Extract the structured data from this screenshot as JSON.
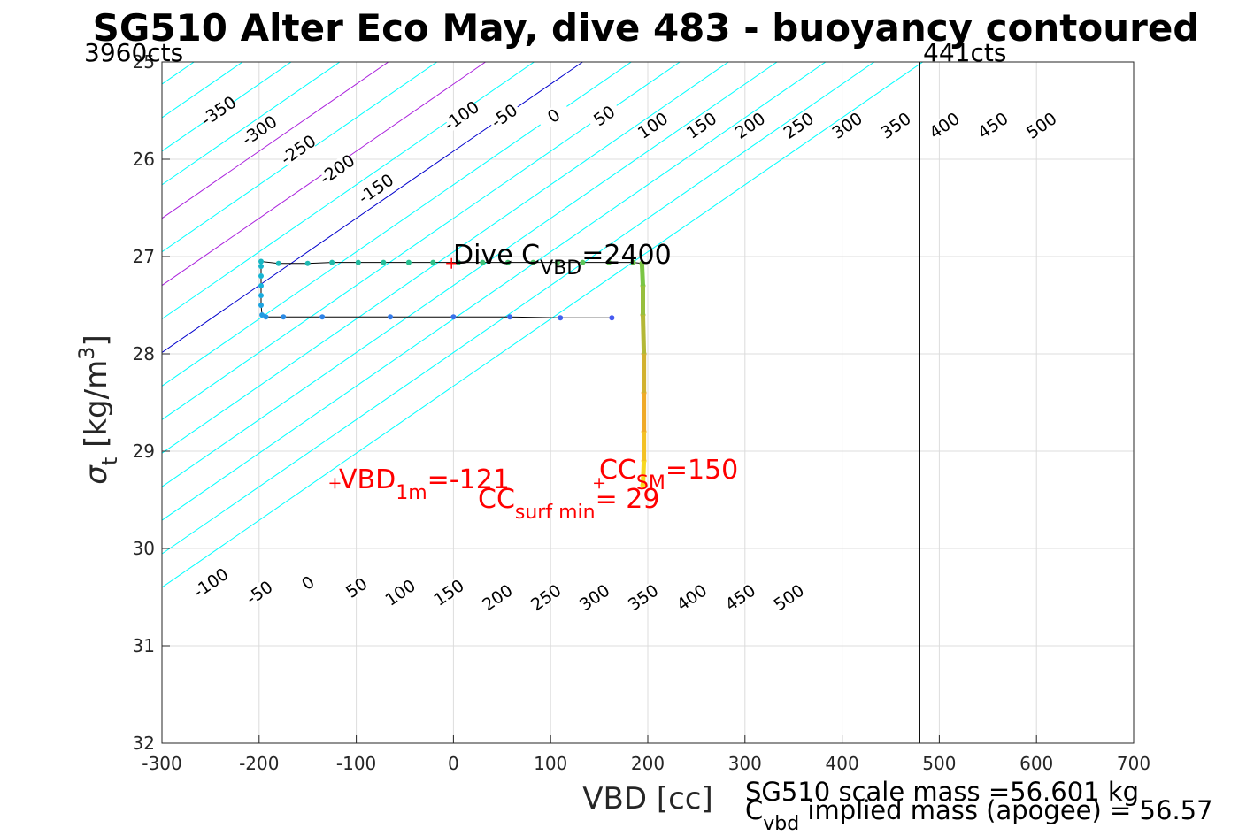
{
  "title": "SG510 Alter Eco May, dive 483 - buoyancy contoured",
  "corner_left": "3960cts",
  "corner_right": "441cts",
  "xlabel": "VBD [cc]",
  "ylabel_sigma": "σ",
  "ylabel_sub": "t",
  "ylabel_units": " [kg/m",
  "ylabel_sup": "3",
  "ylabel_close": "]",
  "annotations": {
    "dive_c_main": "Dive C",
    "dive_c_sub": "VBD",
    "dive_c_value": "=2400",
    "vbd1m_main": "VBD",
    "vbd1m_sub": "1m",
    "vbd1m_value": "=-121",
    "ccsm_main": "CC",
    "ccsm_sub": "SM",
    "ccsm_value": "=150",
    "ccsurf_main": "CC",
    "ccsurf_sub": "surf min",
    "ccsurf_value": "= 29",
    "scale_mass": "SG510 scale mass =56.601 kg",
    "implied_main": "C",
    "implied_sub": "vbd",
    "implied_value": " implied mass (apogee) = 56.57"
  },
  "chart_data": {
    "type": "scatter",
    "title": "SG510 Alter Eco May, dive 483 - buoyancy contoured",
    "xlabel": "VBD [cc]",
    "ylabel": "σt [kg/m3]",
    "xlim": [
      -300,
      700
    ],
    "ylim": [
      25,
      32
    ],
    "y_reversed": true,
    "grid": true,
    "xticks": [
      -300,
      -200,
      -100,
      0,
      100,
      200,
      300,
      400,
      500,
      600,
      700
    ],
    "yticks": [
      25,
      26,
      27,
      28,
      29,
      30,
      31,
      32
    ],
    "contour_slope_cc_per_sigma": 145,
    "contours": [
      {
        "level": -350,
        "color": "#00ffff"
      },
      {
        "level": -300,
        "color": "#00ffff"
      },
      {
        "level": -250,
        "color": "#00ffff"
      },
      {
        "level": -200,
        "color": "#00ffff"
      },
      {
        "level": -150,
        "color": "#00ffff"
      },
      {
        "level": -100,
        "color": "#00ffff"
      },
      {
        "level": -50,
        "color": "#00ffff"
      },
      {
        "level": 0,
        "color": "#0000cc"
      },
      {
        "level": 50,
        "color": "#00ffff"
      },
      {
        "level": 100,
        "color": "#aa22dd"
      },
      {
        "level": 150,
        "color": "#00ffff"
      },
      {
        "level": 200,
        "color": "#aa22dd"
      },
      {
        "level": 250,
        "color": "#00ffff"
      },
      {
        "level": 300,
        "color": "#00ffff"
      },
      {
        "level": 350,
        "color": "#00ffff"
      },
      {
        "level": 400,
        "color": "#00ffff"
      },
      {
        "level": 450,
        "color": "#00ffff"
      },
      {
        "level": 500,
        "color": "#00ffff"
      }
    ],
    "contour_zero_vbd_at_sigma_25": 133,
    "contour_labels_top": [
      {
        "text": "-350",
        "vbd": -242,
        "sigma": 25.5
      },
      {
        "text": "-300",
        "vbd": -200,
        "sigma": 25.7
      },
      {
        "text": "-250",
        "vbd": -160,
        "sigma": 25.9
      },
      {
        "text": "-200",
        "vbd": -120,
        "sigma": 26.1
      },
      {
        "text": "-150",
        "vbd": -80,
        "sigma": 26.3
      },
      {
        "text": "-100",
        "vbd": 8,
        "sigma": 25.55
      },
      {
        "text": "-50",
        "vbd": 52,
        "sigma": 25.55
      },
      {
        "text": "0",
        "vbd": 103,
        "sigma": 25.55
      },
      {
        "text": "50",
        "vbd": 155,
        "sigma": 25.55
      },
      {
        "text": "100",
        "vbd": 205,
        "sigma": 25.65
      },
      {
        "text": "150",
        "vbd": 255,
        "sigma": 25.65
      },
      {
        "text": "200",
        "vbd": 305,
        "sigma": 25.65
      },
      {
        "text": "250",
        "vbd": 355,
        "sigma": 25.65
      },
      {
        "text": "300",
        "vbd": 405,
        "sigma": 25.65
      },
      {
        "text": "350",
        "vbd": 455,
        "sigma": 25.65
      },
      {
        "text": "400",
        "vbd": 505,
        "sigma": 25.65
      },
      {
        "text": "450",
        "vbd": 555,
        "sigma": 25.65
      },
      {
        "text": "500",
        "vbd": 605,
        "sigma": 25.65
      }
    ],
    "contour_labels_bottom": [
      {
        "text": "-100",
        "vbd": -250,
        "sigma": 30.35
      },
      {
        "text": "-50",
        "vbd": -200,
        "sigma": 30.45
      },
      {
        "text": "0",
        "vbd": -150,
        "sigma": 30.35
      },
      {
        "text": "50",
        "vbd": -100,
        "sigma": 30.4
      },
      {
        "text": "100",
        "vbd": -55,
        "sigma": 30.45
      },
      {
        "text": "150",
        "vbd": -5,
        "sigma": 30.45
      },
      {
        "text": "200",
        "vbd": 45,
        "sigma": 30.5
      },
      {
        "text": "250",
        "vbd": 95,
        "sigma": 30.5
      },
      {
        "text": "300",
        "vbd": 145,
        "sigma": 30.5
      },
      {
        "text": "350",
        "vbd": 195,
        "sigma": 30.5
      },
      {
        "text": "400",
        "vbd": 245,
        "sigma": 30.5
      },
      {
        "text": "450",
        "vbd": 295,
        "sigma": 30.5
      },
      {
        "text": "500",
        "vbd": 345,
        "sigma": 30.5
      }
    ],
    "vertical_line_vbd": 480,
    "dive_path": [
      {
        "x": 163,
        "y": 27.63
      },
      {
        "x": 110,
        "y": 27.63
      },
      {
        "x": 58,
        "y": 27.62
      },
      {
        "x": 0,
        "y": 27.62
      },
      {
        "x": -65,
        "y": 27.62
      },
      {
        "x": -135,
        "y": 27.62
      },
      {
        "x": -175,
        "y": 27.62
      },
      {
        "x": -193,
        "y": 27.62
      },
      {
        "x": -197,
        "y": 27.6
      },
      {
        "x": -198,
        "y": 27.5
      },
      {
        "x": -198,
        "y": 27.4
      },
      {
        "x": -198,
        "y": 27.3
      },
      {
        "x": -198,
        "y": 27.2
      },
      {
        "x": -198,
        "y": 27.1
      },
      {
        "x": -198,
        "y": 27.05
      },
      {
        "x": -180,
        "y": 27.07
      },
      {
        "x": -150,
        "y": 27.07
      },
      {
        "x": -125,
        "y": 27.06
      },
      {
        "x": -98,
        "y": 27.06
      },
      {
        "x": -72,
        "y": 27.06
      },
      {
        "x": -46,
        "y": 27.06
      },
      {
        "x": -21,
        "y": 27.06
      },
      {
        "x": 5,
        "y": 27.06
      },
      {
        "x": 30,
        "y": 27.06
      },
      {
        "x": 56,
        "y": 27.06
      },
      {
        "x": 82,
        "y": 27.06
      },
      {
        "x": 107,
        "y": 27.06
      },
      {
        "x": 133,
        "y": 27.06
      },
      {
        "x": 160,
        "y": 27.06
      },
      {
        "x": 185,
        "y": 27.06
      },
      {
        "x": 194,
        "y": 27.07
      },
      {
        "x": 195,
        "y": 27.3
      },
      {
        "x": 195,
        "y": 27.6
      },
      {
        "x": 196,
        "y": 28.0
      },
      {
        "x": 196,
        "y": 28.4
      },
      {
        "x": 196,
        "y": 28.8
      },
      {
        "x": 196,
        "y": 29.1
      },
      {
        "x": 195,
        "y": 29.35
      }
    ],
    "red_markers": [
      {
        "x": -2,
        "y": 27.07
      },
      {
        "x": -122,
        "y": 29.33
      },
      {
        "x": 150,
        "y": 29.33
      }
    ]
  }
}
